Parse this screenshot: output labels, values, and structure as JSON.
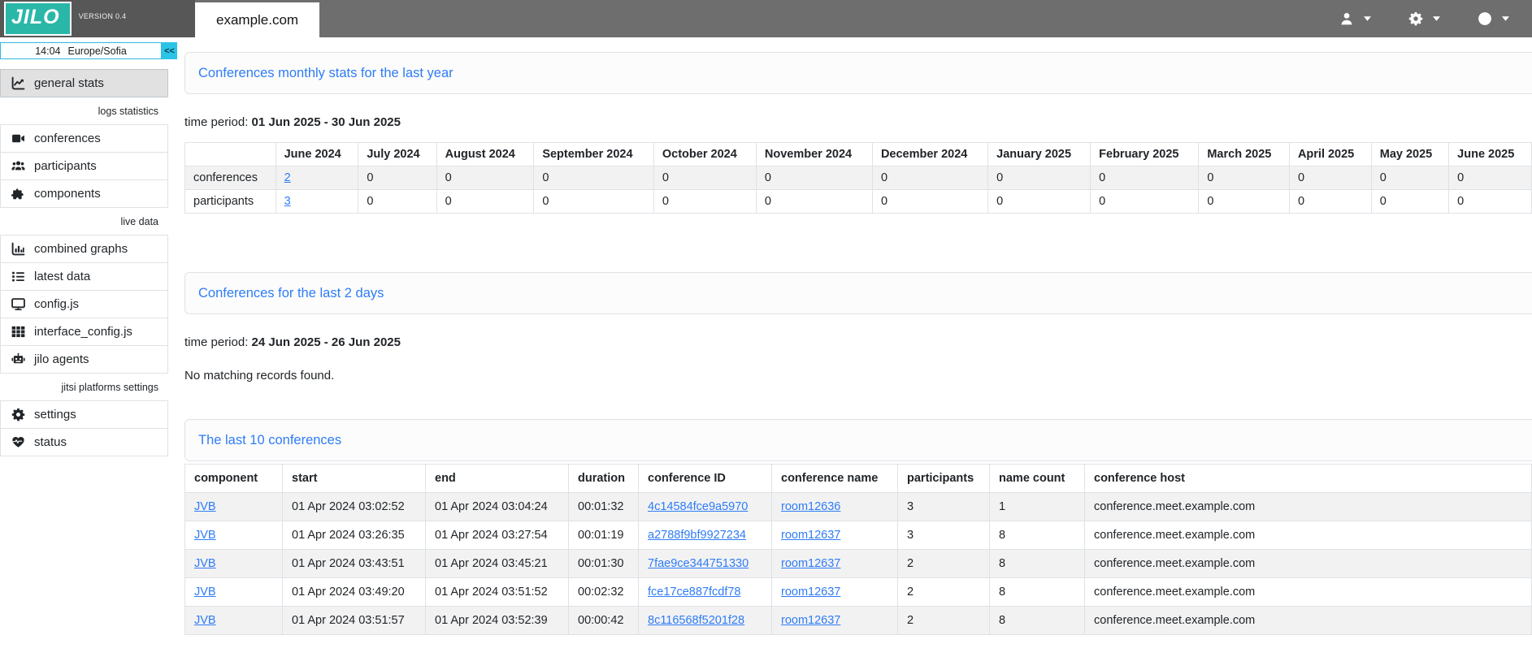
{
  "colors": {
    "brand_teal": "#2ab7a8",
    "header_bar": "#6e6e6e",
    "header_left": "#575757",
    "accent_blue": "#2e7cf7",
    "cyan_button": "#2cc3e8",
    "cyan_border": "#2fb9dc"
  },
  "header": {
    "logo_text": "JILO",
    "version": "VERSION 0.4",
    "tab_label": "example.com",
    "menus": [
      {
        "name": "user-menu",
        "icon": "user-icon"
      },
      {
        "name": "settings-menu",
        "icon": "gear-icon"
      },
      {
        "name": "info-menu",
        "icon": "info-icon"
      }
    ]
  },
  "sidebar": {
    "clock": {
      "time": "14:04",
      "timezone": "Europe/Sofia"
    },
    "collapse_label": "<<",
    "items": [
      {
        "type": "item",
        "id": "general-stats",
        "label": "general stats",
        "icon": "chart-line-icon",
        "active": true
      },
      {
        "type": "label",
        "label": "logs statistics"
      },
      {
        "type": "item",
        "id": "conferences",
        "label": "conferences",
        "icon": "video-camera-icon"
      },
      {
        "type": "item",
        "id": "participants",
        "label": "participants",
        "icon": "users-icon"
      },
      {
        "type": "item",
        "id": "components",
        "label": "components",
        "icon": "puzzle-piece-icon"
      },
      {
        "type": "label",
        "label": "live data"
      },
      {
        "type": "item",
        "id": "combined-graphs",
        "label": "combined graphs",
        "icon": "chart-column-icon"
      },
      {
        "type": "item",
        "id": "latest-data",
        "label": "latest data",
        "icon": "list-icon"
      },
      {
        "type": "item",
        "id": "config-js",
        "label": "config.js",
        "icon": "display-icon"
      },
      {
        "type": "item",
        "id": "interface-config-js",
        "label": "interface_config.js",
        "icon": "grid-icon"
      },
      {
        "type": "item",
        "id": "jilo-agents",
        "label": "jilo agents",
        "icon": "robot-icon"
      },
      {
        "type": "label",
        "label": "jitsi platforms settings"
      },
      {
        "type": "item",
        "id": "settings",
        "label": "settings",
        "icon": "gear-icon"
      },
      {
        "type": "item",
        "id": "status",
        "label": "status",
        "icon": "heart-pulse-icon"
      }
    ]
  },
  "main": {
    "monthly_stats": {
      "title": "Conferences monthly stats for the last year",
      "time_period_label": "time period:",
      "time_period": "01 Jun 2025 - 30 Jun 2025",
      "columns": [
        "",
        "June 2024",
        "July 2024",
        "August 2024",
        "September 2024",
        "October 2024",
        "November 2024",
        "December 2024",
        "January 2025",
        "February 2025",
        "March 2025",
        "April 2025",
        "May 2025",
        "June 2025"
      ],
      "rows": [
        {
          "label": "conferences",
          "values": [
            "2",
            "0",
            "0",
            "0",
            "0",
            "0",
            "0",
            "0",
            "0",
            "0",
            "0",
            "0",
            "0"
          ],
          "first_value_is_link": true,
          "striped": true
        },
        {
          "label": "participants",
          "values": [
            "3",
            "0",
            "0",
            "0",
            "0",
            "0",
            "0",
            "0",
            "0",
            "0",
            "0",
            "0",
            "0"
          ],
          "first_value_is_link": true,
          "striped": false
        }
      ]
    },
    "last_two_days": {
      "title": "Conferences for the last 2 days",
      "time_period_label": "time period:",
      "time_period": "24 Jun 2025 - 26 Jun 2025",
      "empty_message": "No matching records found."
    },
    "last_conferences": {
      "title": "The last 10 conferences",
      "columns": [
        "component",
        "start",
        "end",
        "duration",
        "conference ID",
        "conference name",
        "participants",
        "name count",
        "conference host"
      ],
      "link_columns": [
        0,
        4,
        5
      ],
      "rows": [
        [
          "JVB",
          "01 Apr 2024 03:02:52",
          "01 Apr 2024 03:04:24",
          "00:01:32",
          "4c14584fce9a5970",
          "room12636",
          "3",
          "1",
          "conference.meet.example.com"
        ],
        [
          "JVB",
          "01 Apr 2024 03:26:35",
          "01 Apr 2024 03:27:54",
          "00:01:19",
          "a2788f9bf9927234",
          "room12637",
          "3",
          "8",
          "conference.meet.example.com"
        ],
        [
          "JVB",
          "01 Apr 2024 03:43:51",
          "01 Apr 2024 03:45:21",
          "00:01:30",
          "7fae9ce344751330",
          "room12637",
          "2",
          "8",
          "conference.meet.example.com"
        ],
        [
          "JVB",
          "01 Apr 2024 03:49:20",
          "01 Apr 2024 03:51:52",
          "00:02:32",
          "fce17ce887fcdf78",
          "room12637",
          "2",
          "8",
          "conference.meet.example.com"
        ],
        [
          "JVB",
          "01 Apr 2024 03:51:57",
          "01 Apr 2024 03:52:39",
          "00:00:42",
          "8c116568f5201f28",
          "room12637",
          "2",
          "8",
          "conference.meet.example.com"
        ]
      ]
    }
  }
}
